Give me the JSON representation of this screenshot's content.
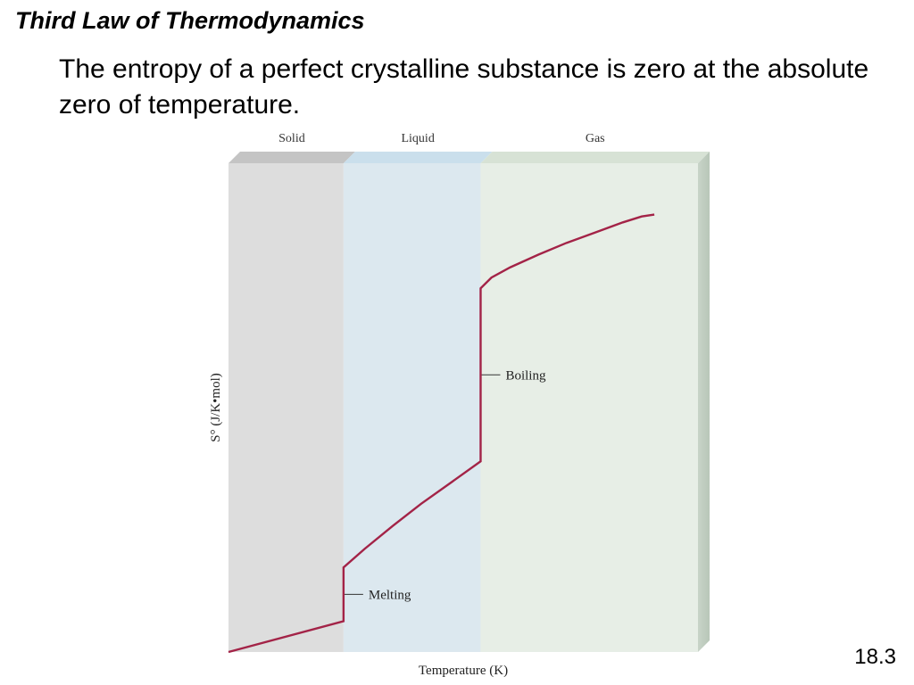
{
  "slide": {
    "title": "Third Law of Thermodynamics",
    "statement": "The entropy of a perfect crystalline substance is zero at the absolute zero of temperature.",
    "page_number": "18.3"
  },
  "chart_data": {
    "type": "line",
    "title": "",
    "xlabel": "Temperature (K)",
    "ylabel": "S° (J/K•mol)",
    "xlim": [
      0,
      100
    ],
    "ylim": [
      0,
      100
    ],
    "axis_ticks": false,
    "grid": false,
    "phases": [
      {
        "name": "Solid",
        "x_start": 0,
        "x_end": 24.5,
        "color": "#dddddd",
        "top_color": "#c4c4c4"
      },
      {
        "name": "Liquid",
        "x_start": 24.5,
        "x_end": 53.7,
        "color": "#dce8ef",
        "top_color": "#cadfec"
      },
      {
        "name": "Gas",
        "x_start": 53.7,
        "x_end": 100,
        "color": "#e7eee6",
        "top_color": "#d7e2d5"
      }
    ],
    "series": [
      {
        "color": "#a32347",
        "points": [
          [
            0,
            0
          ],
          [
            24.5,
            6.3
          ],
          [
            24.5,
            17.3
          ],
          [
            29,
            21.1
          ],
          [
            35,
            25.8
          ],
          [
            41,
            30.3
          ],
          [
            47,
            34.4
          ],
          [
            53.7,
            39.0
          ],
          [
            53.7,
            74.4
          ],
          [
            56,
            76.6
          ],
          [
            60,
            78.7
          ],
          [
            66,
            81.3
          ],
          [
            72,
            83.7
          ],
          [
            78,
            85.8
          ],
          [
            84,
            87.9
          ],
          [
            88,
            89.1
          ],
          [
            90.7,
            89.5
          ]
        ]
      }
    ],
    "annotations": [
      {
        "label": "Melting",
        "x": 24.5,
        "y": 11.8
      },
      {
        "label": "Boiling",
        "x": 53.7,
        "y": 56.7
      }
    ]
  }
}
